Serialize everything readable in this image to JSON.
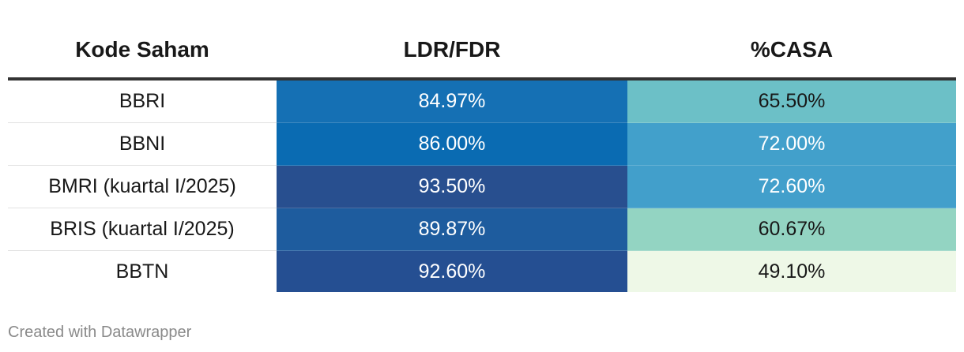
{
  "chart_data": {
    "type": "table",
    "columns": [
      "Kode Saham",
      "LDR/FDR",
      "%CASA"
    ],
    "rows": [
      [
        "BBRI",
        "84.97%",
        "65.50%"
      ],
      [
        "BBNI",
        "86.00%",
        "72.00%"
      ],
      [
        "BMRI (kuartal I/2025)",
        "93.50%",
        "72.60%"
      ],
      [
        "BRIS (kuartal I/2025)",
        "89.87%",
        "60.67%"
      ],
      [
        "BBTN",
        "92.60%",
        "49.10%"
      ]
    ],
    "values": {
      "ldr_fdr": [
        84.97,
        86.0,
        93.5,
        89.87,
        92.6
      ],
      "casa": [
        65.5,
        72.0,
        72.6,
        60.67,
        49.1
      ]
    },
    "cell_colors": {
      "ldr_fdr": [
        "#1570b4",
        "#0a6bb2",
        "#284f8f",
        "#1e5c9e",
        "#254f92"
      ],
      "casa": [
        "#6cc0c7",
        "#42a0cb",
        "#429fcb",
        "#93d4c2",
        "#eef8e7"
      ]
    },
    "text_colors": {
      "ldr_fdr": [
        "#ffffff",
        "#ffffff",
        "#ffffff",
        "#ffffff",
        "#ffffff"
      ],
      "casa": [
        "#181818",
        "#ffffff",
        "#ffffff",
        "#181818",
        "#181818"
      ]
    }
  },
  "footer": {
    "credit": "Created with Datawrapper"
  }
}
